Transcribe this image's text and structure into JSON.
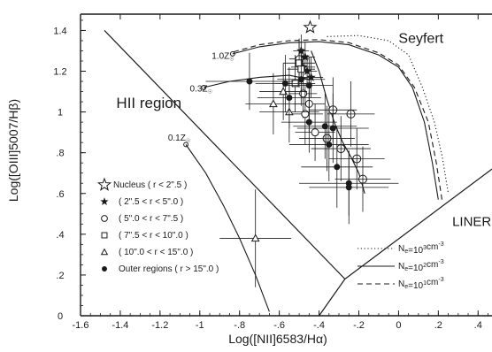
{
  "chart_data": {
    "type": "scatter",
    "xlabel": "Log([NII]6583/Hα)",
    "ylabel": "Log([OIII]5007/Hβ)",
    "xlim": [
      -1.6,
      0.47
    ],
    "ylim": [
      0.0,
      1.48
    ],
    "x_ticks": [
      -1.6,
      -1.4,
      -1.2,
      -1.0,
      -0.8,
      -0.6,
      -0.4,
      -0.2,
      0.0,
      0.2,
      0.4
    ],
    "x_tick_labels": [
      "-1.6",
      "-1.4",
      "-1.2",
      "-1",
      "-.8",
      "-.6",
      "-.4",
      "-.2",
      "0",
      ".2",
      ".4"
    ],
    "y_ticks": [
      0.0,
      0.2,
      0.4,
      0.6,
      0.8,
      1.0,
      1.2,
      1.4
    ],
    "y_tick_labels": [
      "0",
      ".2",
      ".4",
      ".6",
      ".8",
      "1",
      "1.2",
      "1.4"
    ],
    "regions": [
      {
        "label": "HII region",
        "x": -1.42,
        "y": 1.02,
        "size": 17
      },
      {
        "label": "Seyfert",
        "x": 0.0,
        "y": 1.34,
        "size": 16
      },
      {
        "label": "LINER",
        "x": 0.27,
        "y": 0.44,
        "size": 15
      }
    ],
    "boundaries": [
      {
        "name": "hii-boundary-line",
        "points": [
          [
            -1.48,
            1.4
          ],
          [
            -0.27,
            0.18
          ]
        ]
      },
      {
        "name": "liner-left-line",
        "points": [
          [
            -0.27,
            0.18
          ],
          [
            -0.4,
            0.0
          ]
        ]
      },
      {
        "name": "liner-upper-line",
        "points": [
          [
            -0.27,
            0.18
          ],
          [
            0.47,
            0.72
          ]
        ]
      }
    ],
    "model_curves": [
      {
        "label": "1.0Z",
        "sub": "☉",
        "label_x": -0.94,
        "label_y": 1.26,
        "marker": [
          -0.835,
          1.285
        ],
        "style": "solid",
        "points": [
          [
            -0.835,
            1.285
          ],
          [
            -0.7,
            1.32
          ],
          [
            -0.55,
            1.34
          ],
          [
            -0.4,
            1.345
          ],
          [
            -0.25,
            1.33
          ],
          [
            -0.1,
            1.28
          ],
          [
            0.0,
            1.22
          ],
          [
            0.07,
            1.12
          ],
          [
            0.13,
            0.95
          ],
          [
            0.17,
            0.75
          ],
          [
            0.2,
            0.57
          ]
        ]
      },
      {
        "label": "1.0Z dashed",
        "style": "dashed",
        "points": [
          [
            -0.83,
            1.295
          ],
          [
            -0.7,
            1.33
          ],
          [
            -0.55,
            1.35
          ],
          [
            -0.4,
            1.355
          ],
          [
            -0.25,
            1.34
          ],
          [
            -0.1,
            1.29
          ],
          [
            0.0,
            1.23
          ],
          [
            0.08,
            1.12
          ],
          [
            0.15,
            0.95
          ],
          [
            0.19,
            0.75
          ],
          [
            0.22,
            0.56
          ]
        ]
      },
      {
        "label": "1.0Z dotted",
        "style": "dotted",
        "points": [
          [
            -0.36,
            1.37
          ],
          [
            -0.2,
            1.375
          ],
          [
            -0.05,
            1.35
          ],
          [
            0.05,
            1.28
          ],
          [
            0.12,
            1.12
          ],
          [
            0.18,
            0.95
          ],
          [
            0.22,
            0.78
          ],
          [
            0.25,
            0.6
          ]
        ]
      },
      {
        "label": "0.3Z",
        "sub": "☉",
        "label_x": -1.05,
        "label_y": 1.1,
        "marker": [
          -0.98,
          1.12
        ],
        "style": "solid",
        "points": [
          [
            -0.98,
            1.12
          ],
          [
            -0.85,
            1.15
          ],
          [
            -0.7,
            1.17
          ],
          [
            -0.55,
            1.18
          ],
          [
            -0.45,
            1.16
          ]
        ]
      },
      {
        "label": "0.1Z",
        "sub": "☉",
        "label_x": -1.16,
        "label_y": 0.86,
        "marker": [
          -1.07,
          0.84
        ],
        "style": "solid",
        "points": [
          [
            -1.07,
            0.84
          ],
          [
            -0.97,
            0.7
          ],
          [
            -0.88,
            0.54
          ],
          [
            -0.8,
            0.38
          ],
          [
            -0.72,
            0.2
          ],
          [
            -0.65,
            0.02
          ]
        ]
      }
    ],
    "data_curve": [
      [
        -0.44,
        1.3
      ],
      [
        -0.4,
        1.2
      ],
      [
        -0.36,
        1.06
      ],
      [
        -0.32,
        0.94
      ],
      [
        -0.28,
        0.85
      ],
      [
        -0.24,
        0.78
      ],
      [
        -0.2,
        0.7
      ],
      [
        -0.17,
        0.6
      ]
    ],
    "observations": [
      {
        "symbol": "nucleus-star",
        "x": -0.445,
        "y": 1.415,
        "xerr": 0.0,
        "yerr": 0.0
      },
      {
        "symbol": "star",
        "x": -0.49,
        "y": 1.3,
        "xerr": 0.04,
        "yerr": 0.08
      },
      {
        "symbol": "star",
        "x": -0.47,
        "y": 1.27,
        "xerr": 0.05,
        "yerr": 0.07
      },
      {
        "symbol": "star",
        "x": -0.48,
        "y": 1.22,
        "xerr": 0.06,
        "yerr": 0.09
      },
      {
        "symbol": "star",
        "x": -0.46,
        "y": 1.2,
        "xerr": 0.05,
        "yerr": 0.08
      },
      {
        "symbol": "star",
        "x": -0.44,
        "y": 1.17,
        "xerr": 0.06,
        "yerr": 0.1
      },
      {
        "symbol": "circle",
        "x": -0.5,
        "y": 1.26,
        "xerr": 0.05,
        "yerr": 0.1
      },
      {
        "symbol": "circle",
        "x": -0.48,
        "y": 1.09,
        "xerr": 0.07,
        "yerr": 0.12
      },
      {
        "symbol": "circle",
        "x": -0.45,
        "y": 1.04,
        "xerr": 0.08,
        "yerr": 0.14
      },
      {
        "symbol": "circle",
        "x": -0.47,
        "y": 0.99,
        "xerr": 0.09,
        "yerr": 0.15
      },
      {
        "symbol": "circle",
        "x": -0.42,
        "y": 0.9,
        "xerr": 0.1,
        "yerr": 0.14
      },
      {
        "symbol": "circle-plus",
        "x": -0.33,
        "y": 1.01,
        "xerr": 0.12,
        "yerr": 0.16
      },
      {
        "symbol": "circle-plus",
        "x": -0.24,
        "y": 0.99,
        "xerr": 0.12,
        "yerr": 0.16
      },
      {
        "symbol": "circle-plus",
        "x": -0.36,
        "y": 0.87,
        "xerr": 0.14,
        "yerr": 0.16
      },
      {
        "symbol": "circle-plus",
        "x": -0.29,
        "y": 0.82,
        "xerr": 0.15,
        "yerr": 0.16
      },
      {
        "symbol": "circle-plus",
        "x": -0.21,
        "y": 0.77,
        "xerr": 0.14,
        "yerr": 0.15
      },
      {
        "symbol": "circle-plus",
        "x": -0.18,
        "y": 0.67,
        "xerr": 0.14,
        "yerr": 0.16
      },
      {
        "symbol": "square",
        "x": -0.5,
        "y": 1.24,
        "xerr": 0.08,
        "yerr": 0.12
      },
      {
        "symbol": "square",
        "x": -0.49,
        "y": 1.21,
        "xerr": 0.07,
        "yerr": 0.11
      },
      {
        "symbol": "square",
        "x": -0.52,
        "y": 1.14,
        "xerr": 0.1,
        "yerr": 0.14
      },
      {
        "symbol": "triangle",
        "x": -0.58,
        "y": 1.1,
        "xerr": 0.12,
        "yerr": 0.14
      },
      {
        "symbol": "triangle",
        "x": -0.63,
        "y": 1.04,
        "xerr": 0.14,
        "yerr": 0.15
      },
      {
        "symbol": "triangle",
        "x": -0.55,
        "y": 1.0,
        "xerr": 0.15,
        "yerr": 0.15
      },
      {
        "symbol": "triangle",
        "x": -0.72,
        "y": 0.38,
        "xerr": 0.18,
        "yerr": 0.24
      },
      {
        "symbol": "filled-circle",
        "x": -0.75,
        "y": 1.15,
        "xerr": 0.22,
        "yerr": 0.14
      },
      {
        "symbol": "filled-circle",
        "x": -0.57,
        "y": 1.14,
        "xerr": 0.15,
        "yerr": 0.14
      },
      {
        "symbol": "filled-circle",
        "x": -0.49,
        "y": 1.16,
        "xerr": 0.12,
        "yerr": 0.13
      },
      {
        "symbol": "filled-circle",
        "x": -0.45,
        "y": 1.13,
        "xerr": 0.12,
        "yerr": 0.14
      },
      {
        "symbol": "filled-circle",
        "x": -0.55,
        "y": 1.07,
        "xerr": 0.16,
        "yerr": 0.15
      },
      {
        "symbol": "filled-circle",
        "x": -0.45,
        "y": 0.95,
        "xerr": 0.14,
        "yerr": 0.15
      },
      {
        "symbol": "filled-circle",
        "x": -0.37,
        "y": 0.93,
        "xerr": 0.16,
        "yerr": 0.16
      },
      {
        "symbol": "filled-circle",
        "x": -0.33,
        "y": 0.92,
        "xerr": 0.18,
        "yerr": 0.17
      },
      {
        "symbol": "filled-circle",
        "x": -0.35,
        "y": 0.84,
        "xerr": 0.2,
        "yerr": 0.18
      },
      {
        "symbol": "filled-circle",
        "x": -0.31,
        "y": 0.73,
        "xerr": 0.18,
        "yerr": 0.2
      },
      {
        "symbol": "filled-circle",
        "x": -0.25,
        "y": 0.65,
        "xerr": 0.25,
        "yerr": 0.16
      },
      {
        "symbol": "filled-circle",
        "x": -0.25,
        "y": 0.63,
        "xerr": 0.2,
        "yerr": 0.18
      }
    ],
    "legend": {
      "placement": "left-middle",
      "entries": [
        {
          "symbol": "nucleus-star",
          "text": "Nucleus ( r < 2\".5 )"
        },
        {
          "symbol": "star",
          "text": "( 2\".5 < r < 5\".0 )"
        },
        {
          "symbol": "circle",
          "text": "( 5\".0 < r < 7\".5 )"
        },
        {
          "symbol": "square",
          "text": "( 7\".5 < r < 10\".0 )"
        },
        {
          "symbol": "triangle",
          "text": "( 10\".0 < r < 15\".0 )"
        },
        {
          "symbol": "filled-circle",
          "text": "Outer regions ( r > 15\".0 )"
        }
      ]
    },
    "density_legend": [
      {
        "style": "dotted",
        "text": "N",
        "sub": "e",
        "rest": "=10",
        "sup": "3",
        "unit": "cm",
        "unit_sup": "-3"
      },
      {
        "style": "solid",
        "text": "N",
        "sub": "e",
        "rest": "=10",
        "sup": "2",
        "unit": "cm",
        "unit_sup": "-3"
      },
      {
        "style": "dashed",
        "text": "N",
        "sub": "e",
        "rest": "=10",
        "sup": "1",
        "unit": "cm",
        "unit_sup": "-3"
      }
    ]
  }
}
